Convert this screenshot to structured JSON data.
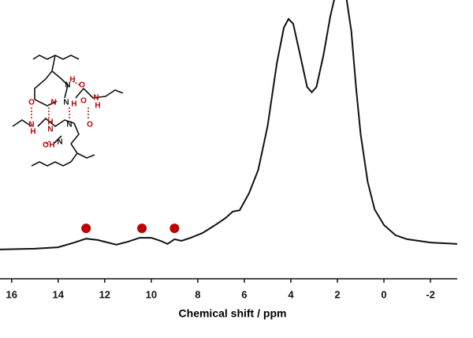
{
  "chart_data": {
    "type": "line",
    "x_label": "Chemical shift / ppm",
    "xlim": [
      16.5,
      -3.15
    ],
    "ylim": [
      0,
      100
    ],
    "xticks": [
      16,
      14,
      12,
      10,
      8,
      6,
      4,
      2,
      0,
      -2
    ],
    "color": "#111111",
    "x": [
      16.5,
      15,
      14,
      13.3,
      12.8,
      12.3,
      11.5,
      11,
      10.5,
      10,
      9.6,
      9.3,
      9.0,
      8.7,
      8.3,
      7.8,
      7.3,
      6.8,
      6.5,
      6.2,
      5.8,
      5.4,
      5.0,
      4.6,
      4.3,
      4.1,
      3.9,
      3.6,
      3.3,
      3.1,
      2.9,
      2.6,
      2.3,
      2.1,
      1.9,
      1.6,
      1.4,
      1.2,
      1.0,
      0.7,
      0.4,
      0,
      -0.5,
      -1,
      -2,
      -3.15
    ],
    "values": [
      10.5,
      10.8,
      11.3,
      13.0,
      14.4,
      13.9,
      12.2,
      13.3,
      14.7,
      14.7,
      13.6,
      12.5,
      14.2,
      13.6,
      14.7,
      16.4,
      19.0,
      21.8,
      24.1,
      24.6,
      30.6,
      39.1,
      54.7,
      77.3,
      90.1,
      93.2,
      91.5,
      80.2,
      68.8,
      66.9,
      68.8,
      80.2,
      94.3,
      101.4,
      105.7,
      100,
      88.7,
      68.8,
      51.8,
      34.8,
      24.9,
      19.3,
      15.6,
      14.2,
      13.0,
      12.5
    ],
    "markers": {
      "color": "#c00000",
      "x": [
        12.8,
        10.4,
        9.0
      ],
      "values": [
        18.1,
        18.1,
        18.1
      ]
    },
    "structure_atoms": [
      "H",
      "N",
      "O",
      "N",
      "N",
      "H",
      "O",
      "N",
      "H",
      "O",
      "N",
      "H",
      "H",
      "N",
      "N",
      "O",
      "O",
      "H",
      "N"
    ]
  }
}
